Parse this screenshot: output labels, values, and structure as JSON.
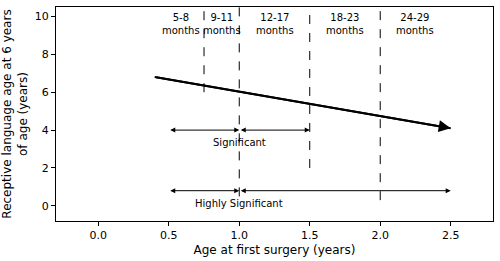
{
  "chart_data": {
    "type": "line",
    "x_label": "Age at first surgery (years)",
    "y_label": [
      "Receptive language age at 6 years",
      "of age (years)"
    ],
    "x": [
      0.4,
      2.5
    ],
    "values": [
      6.8,
      4.1
    ],
    "color": "#000000",
    "marker": "arrow",
    "grid": false,
    "xlim": [
      -0.3,
      2.8
    ],
    "xticks": [
      {
        "value": 0,
        "label": "0.0"
      },
      0.5,
      {
        "value": 1,
        "label": "1.0"
      },
      1.5,
      {
        "value": 2,
        "label": "2.0"
      },
      2.5
    ],
    "ylim": [
      -0.8,
      10.5
    ],
    "yticks": [
      0,
      2,
      4,
      6,
      8,
      10
    ],
    "age_bands": [
      {
        "label": [
          "5-8",
          "months"
        ],
        "from": 0.42,
        "to": 0.75,
        "divider_from": null
      },
      {
        "label": [
          "9-11",
          "months"
        ],
        "from": 0.75,
        "to": 1.0,
        "divider_from": 6
      },
      {
        "label": [
          "12-17",
          "months"
        ],
        "from": 1.0,
        "to": 1.5,
        "divider_from": 0.5
      },
      {
        "label": [
          "18-23",
          "months"
        ],
        "from": 1.5,
        "to": 2.0,
        "divider_from": 2
      },
      {
        "label": [
          "24-29",
          "months"
        ],
        "from": 2.0,
        "to": 2.5,
        "divider_from": 0.3
      }
    ],
    "comparisons": [
      {
        "label": "Significant",
        "y": 4,
        "from": 0.5,
        "mid": 1.0,
        "to": 1.5
      },
      {
        "label": "Highly Significant",
        "y": 0.8,
        "from": 0.5,
        "mid": 1.0,
        "to": 2.5
      }
    ]
  }
}
